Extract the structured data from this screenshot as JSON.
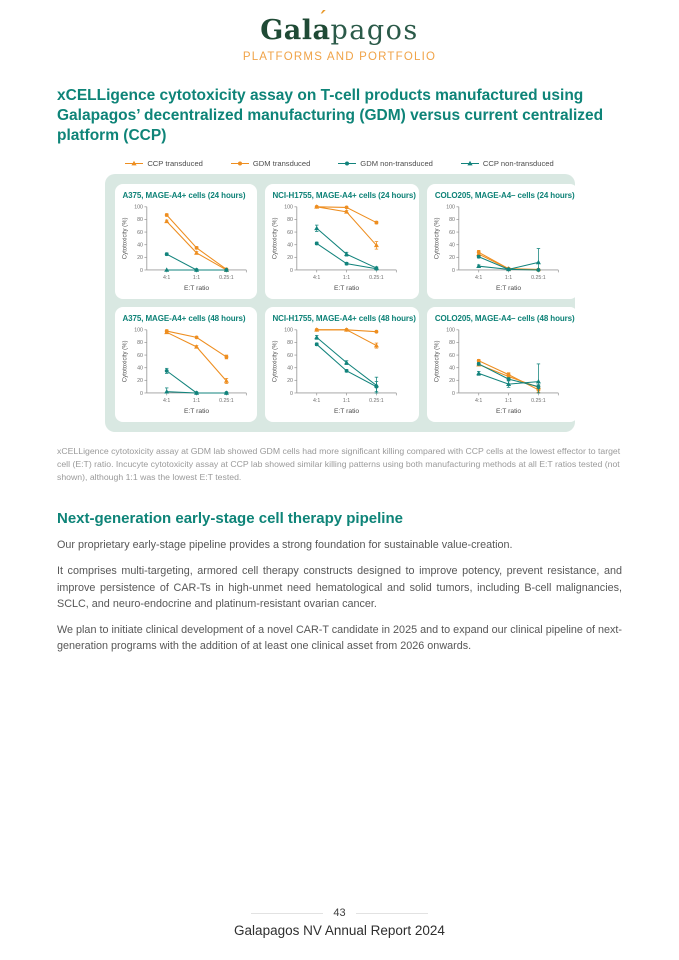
{
  "header": {
    "logo": {
      "bold_part": "Gal",
      "accented_letter": "a",
      "accent_mark": "´",
      "light_part": "pagos"
    },
    "subtitle": "PLATFORMS AND PORTFOLIO"
  },
  "figure_heading": "xCELLigence cytotoxicity assay on T-cell products manufactured using Galapagos’ decentralized manufacturing (GDM) versus current centralized platform (CCP)",
  "legend": [
    {
      "label": "CCP transduced",
      "color": "#EE8E20",
      "marker": "triangle"
    },
    {
      "label": "GDM transduced",
      "color": "#EE8E20",
      "marker": "circle"
    },
    {
      "label": "GDM non-transduced",
      "color": "#12837C",
      "marker": "circle"
    },
    {
      "label": "CCP non-transduced",
      "color": "#12837C",
      "marker": "triangle"
    }
  ],
  "chart_data": [
    {
      "type": "line",
      "title": "A375, MAGE-A4+ cells (24 hours)",
      "categories": [
        "4:1",
        "1:1",
        "0.25:1"
      ],
      "xlabel": "E:T ratio",
      "ylabel": "Cytotoxicity (%)",
      "ylim": [
        0,
        100
      ],
      "yticks": [
        0,
        20,
        40,
        60,
        80,
        100
      ],
      "series": [
        {
          "name": "CCP transduced",
          "values": [
            77,
            27,
            0
          ],
          "errors": [
            2,
            2,
            0
          ]
        },
        {
          "name": "GDM transduced",
          "values": [
            87,
            35,
            1
          ],
          "errors": [
            2,
            2,
            0
          ]
        },
        {
          "name": "GDM non-transduced",
          "values": [
            25,
            0,
            0
          ],
          "errors": [
            2,
            0,
            0
          ]
        },
        {
          "name": "CCP non-transduced",
          "values": [
            0,
            0,
            0
          ],
          "errors": [
            0,
            0,
            0
          ]
        }
      ]
    },
    {
      "type": "line",
      "title": "NCI-H1755, MAGE-A4+ cells (24 hours)",
      "categories": [
        "4:1",
        "1:1",
        "0.25:1"
      ],
      "xlabel": "E:T ratio",
      "ylabel": "Cytotoxicity (%)",
      "ylim": [
        0,
        100
      ],
      "yticks": [
        0,
        20,
        40,
        60,
        80,
        100
      ],
      "series": [
        {
          "name": "CCP transduced",
          "values": [
            100,
            92,
            39
          ],
          "errors": [
            0,
            2,
            6
          ]
        },
        {
          "name": "GDM transduced",
          "values": [
            100,
            99,
            75
          ],
          "errors": [
            0,
            0,
            2
          ]
        },
        {
          "name": "GDM non-transduced",
          "values": [
            42,
            10,
            2
          ],
          "errors": [
            2,
            2,
            2
          ]
        },
        {
          "name": "CCP non-transduced",
          "values": [
            66,
            25,
            3
          ],
          "errors": [
            5,
            3,
            2
          ]
        }
      ]
    },
    {
      "type": "line",
      "title": "COLO205, MAGE-A4– cells (24 hours)",
      "categories": [
        "4:1",
        "1:1",
        "0.25:1"
      ],
      "xlabel": "E:T ratio",
      "ylabel": "Cytotoxicity (%)",
      "ylim": [
        0,
        100
      ],
      "yticks": [
        0,
        20,
        40,
        60,
        80,
        100
      ],
      "series": [
        {
          "name": "CCP transduced",
          "values": [
            25,
            2,
            1
          ],
          "errors": [
            3,
            1,
            1
          ]
        },
        {
          "name": "GDM transduced",
          "values": [
            28,
            2,
            0
          ],
          "errors": [
            3,
            1,
            1
          ]
        },
        {
          "name": "GDM non-transduced",
          "values": [
            21,
            1,
            0
          ],
          "errors": [
            2,
            1,
            1
          ]
        },
        {
          "name": "CCP non-transduced",
          "values": [
            6,
            1,
            12
          ],
          "errors": [
            2,
            1,
            22
          ]
        }
      ]
    },
    {
      "type": "line",
      "title": "A375, MAGE-A4+ cells (48 hours)",
      "categories": [
        "4:1",
        "1:1",
        "0.25:1"
      ],
      "xlabel": "E:T ratio",
      "ylabel": "Cytotoxicity (%)",
      "ylim": [
        0,
        100
      ],
      "yticks": [
        0,
        20,
        40,
        60,
        80,
        100
      ],
      "series": [
        {
          "name": "CCP transduced",
          "values": [
            96,
            73,
            19
          ],
          "errors": [
            2,
            2,
            4
          ]
        },
        {
          "name": "GDM transduced",
          "values": [
            98,
            88,
            57
          ],
          "errors": [
            2,
            0,
            3
          ]
        },
        {
          "name": "GDM non-transduced",
          "values": [
            35,
            0,
            0
          ],
          "errors": [
            4,
            0,
            0
          ]
        },
        {
          "name": "CCP non-transduced",
          "values": [
            2,
            0,
            0
          ],
          "errors": [
            6,
            0,
            0
          ]
        }
      ]
    },
    {
      "type": "line",
      "title": "NCI-H1755, MAGE-A4+ cells (48 hours)",
      "categories": [
        "4:1",
        "1:1",
        "0.25:1"
      ],
      "xlabel": "E:T ratio",
      "ylabel": "Cytotoxicity (%)",
      "ylim": [
        0,
        100
      ],
      "yticks": [
        0,
        20,
        40,
        60,
        80,
        100
      ],
      "series": [
        {
          "name": "CCP transduced",
          "values": [
            100,
            100,
            75
          ],
          "errors": [
            0,
            0,
            4
          ]
        },
        {
          "name": "GDM transduced",
          "values": [
            100,
            100,
            97
          ],
          "errors": [
            0,
            0,
            0
          ]
        },
        {
          "name": "GDM non-transduced",
          "values": [
            77,
            35,
            10
          ],
          "errors": [
            2,
            2,
            8
          ]
        },
        {
          "name": "CCP non-transduced",
          "values": [
            88,
            48,
            12
          ],
          "errors": [
            3,
            3,
            13
          ]
        }
      ]
    },
    {
      "type": "line",
      "title": "COLO205, MAGE-A4– cells (48 hours)",
      "categories": [
        "4:1",
        "1:1",
        "0.25:1"
      ],
      "xlabel": "E:T ratio",
      "ylabel": "Cytotoxicity (%)",
      "ylim": [
        0,
        100
      ],
      "yticks": [
        0,
        20,
        40,
        60,
        80,
        100
      ],
      "series": [
        {
          "name": "CCP transduced",
          "values": [
            45,
            26,
            9
          ],
          "errors": [
            2,
            4,
            2
          ]
        },
        {
          "name": "GDM transduced",
          "values": [
            51,
            29,
            5
          ],
          "errors": [
            2,
            3,
            4
          ]
        },
        {
          "name": "GDM non-transduced",
          "values": [
            46,
            22,
            10
          ],
          "errors": [
            2,
            2,
            3
          ]
        },
        {
          "name": "CCP non-transduced",
          "values": [
            31,
            14,
            18
          ],
          "errors": [
            3,
            5,
            28
          ]
        }
      ]
    }
  ],
  "figure_caption": "xCELLigence cytotoxicity assay at GDM lab showed GDM cells had more significant killing compared with CCP cells at the lowest effector to target cell (E:T) ratio. Incucyte cytotoxicity assay at CCP lab showed similar killing patterns using both manufacturing methods at all E:T ratios tested (not shown), although 1:1 was the lowest E:T tested.",
  "section": {
    "heading": "Next-generation early-stage cell therapy pipeline",
    "paragraphs": [
      "Our proprietary early-stage pipeline provides a strong foundation for sustainable value-creation.",
      "It comprises multi-targeting, armored cell therapy constructs designed to improve potency, prevent resistance, and improve persistence of CAR-Ts in high-unmet need hematological and solid tumors, including B-cell malignancies, SCLC, and neuro-endocrine and platinum-resistant ovarian cancer.",
      "We plan to initiate clinical development of a novel CAR-T candidate in 2025 and to expand our clinical pipeline of next-generation programs with the addition of at least one clinical asset from 2026 onwards."
    ]
  },
  "footer": {
    "page_number": "43",
    "report_title": "Galapagos NV Annual Report 2024"
  },
  "colors": {
    "accent_teal": "#0E8478",
    "accent_orange": "#F0A348",
    "series_orange": "#EE8E20",
    "series_teal": "#12837C",
    "figure_background": "#D9E8E2"
  }
}
